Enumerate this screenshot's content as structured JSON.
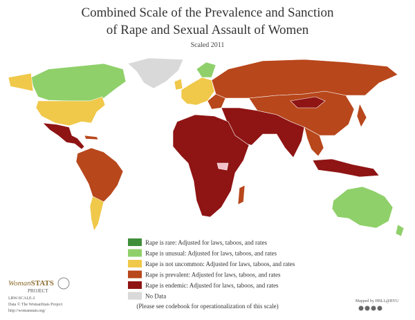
{
  "title_lines": [
    "Combined Scale of the Prevalence and Sanction",
    "of Rape and Sexual Assault of Women"
  ],
  "subtitle": "Scaled 2011",
  "legend": [
    {
      "label": "Rape is rare: Adjusted for laws, taboos, and rates",
      "color": "#3f8f3a"
    },
    {
      "label": "Rape is unusual: Adjusted for laws, taboos, and rates",
      "color": "#8fd06a"
    },
    {
      "label": "Rape is not uncommon: Adjusted for laws, taboos, and rates",
      "color": "#f0c84a"
    },
    {
      "label": "Rape is prevalent: Adjusted for laws, taboos, and rates",
      "color": "#b8471c"
    },
    {
      "label": "Rape is endemic: Adjusted for laws, taboos, and rates",
      "color": "#8f1414"
    },
    {
      "label": "No Data",
      "color": "#d9d9d9"
    }
  ],
  "footnote": "(Please see codebook for operationalization of this scale)",
  "logo": {
    "name_a": "Woman",
    "name_b": "STATS",
    "project": "PROJECT",
    "lines": [
      "LRW-SCALE-2",
      "Data © The WomanStats Project",
      "http://womanstats.org/"
    ]
  },
  "credit": "Mapped by HBLL@BYU"
}
